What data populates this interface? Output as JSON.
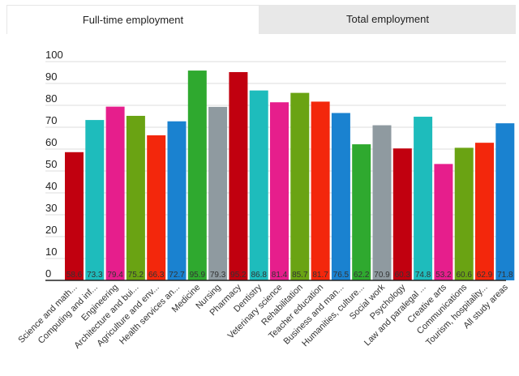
{
  "tabs": {
    "fulltime_label": "Full-time employment",
    "total_label": "Total employment"
  },
  "colors": {
    "grid": "#dddddd",
    "axis": "#222222"
  },
  "chart_data": {
    "type": "bar",
    "title": "",
    "xlabel": "",
    "ylabel": "",
    "ylim": [
      0,
      100
    ],
    "yticks": [
      0,
      10,
      20,
      30,
      40,
      50,
      60,
      70,
      80,
      90,
      100
    ],
    "grid": true,
    "categories": [
      "Science and math...",
      "Computing and inf...",
      "Engineering",
      "Architecture and bui...",
      "Agriculture and env...",
      "Health services an...",
      "Medicine",
      "Nursing",
      "Pharmacy",
      "Dentistry",
      "Veterinary science",
      "Rehabilitation",
      "Teacher education",
      "Business and man...",
      "Humanities, culture...",
      "Social work",
      "Psychology",
      "Law and paralegal ...",
      "Creative arts",
      "Communications",
      "Tourism, hospitality...",
      "All study areas"
    ],
    "values": [
      58.6,
      73.3,
      79.4,
      75.2,
      66.3,
      72.7,
      95.9,
      79.3,
      95.2,
      86.8,
      81.4,
      85.7,
      81.7,
      76.5,
      62.2,
      70.9,
      60.3,
      74.8,
      53.2,
      60.6,
      62.9,
      71.8
    ],
    "value_labels": [
      "58.6",
      "73.3",
      "79.4",
      "75.2",
      "66.3",
      "72.7",
      "95.9",
      "79.3",
      "95.2",
      "86.8",
      "81.4",
      "85.7",
      "81.7",
      "76.5",
      "62.2",
      "70.9",
      "60.3",
      "74.8",
      "53.2",
      "60.6",
      "62.9",
      "71.8"
    ],
    "bar_colors": [
      "#c1000f",
      "#1ebcbc",
      "#e61e8c",
      "#6aa313",
      "#f3270c",
      "#1a82d0",
      "#2fa92f",
      "#8f9aa0",
      "#c1000f",
      "#1ebcbc",
      "#e61e8c",
      "#6aa313",
      "#f3270c",
      "#1a82d0",
      "#2fa92f",
      "#8f9aa0",
      "#c1000f",
      "#1ebcbc",
      "#e61e8c",
      "#6aa313",
      "#f3270c",
      "#1a82d0"
    ]
  }
}
